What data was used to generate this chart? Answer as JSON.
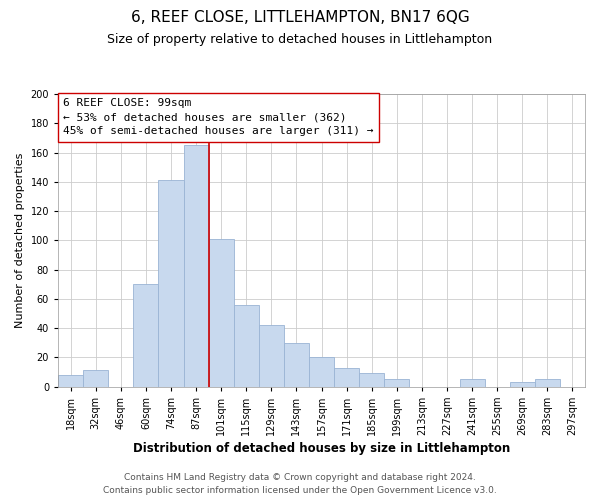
{
  "title": "6, REEF CLOSE, LITTLEHAMPTON, BN17 6QG",
  "subtitle": "Size of property relative to detached houses in Littlehampton",
  "xlabel": "Distribution of detached houses by size in Littlehampton",
  "ylabel": "Number of detached properties",
  "footer_line1": "Contains HM Land Registry data © Crown copyright and database right 2024.",
  "footer_line2": "Contains public sector information licensed under the Open Government Licence v3.0.",
  "bar_labels": [
    "18sqm",
    "32sqm",
    "46sqm",
    "60sqm",
    "74sqm",
    "87sqm",
    "101sqm",
    "115sqm",
    "129sqm",
    "143sqm",
    "157sqm",
    "171sqm",
    "185sqm",
    "199sqm",
    "213sqm",
    "227sqm",
    "241sqm",
    "255sqm",
    "269sqm",
    "283sqm",
    "297sqm"
  ],
  "bar_values": [
    8,
    11,
    0,
    70,
    141,
    165,
    101,
    56,
    42,
    30,
    20,
    13,
    9,
    5,
    0,
    0,
    5,
    0,
    3,
    5,
    0
  ],
  "bar_color": "#c8d9ee",
  "bar_edge_color": "#9ab4d4",
  "vline_x_index": 6,
  "vline_color": "#cc0000",
  "annotation_line1": "6 REEF CLOSE: 99sqm",
  "annotation_line2": "← 53% of detached houses are smaller (362)",
  "annotation_line3": "45% of semi-detached houses are larger (311) →",
  "ylim": [
    0,
    200
  ],
  "yticks": [
    0,
    20,
    40,
    60,
    80,
    100,
    120,
    140,
    160,
    180,
    200
  ],
  "bg_color": "#ffffff",
  "grid_color": "#cccccc",
  "title_fontsize": 11,
  "subtitle_fontsize": 9,
  "axis_label_fontsize": 8.5,
  "ylabel_fontsize": 8,
  "tick_fontsize": 7,
  "annotation_fontsize": 8,
  "footer_fontsize": 6.5
}
